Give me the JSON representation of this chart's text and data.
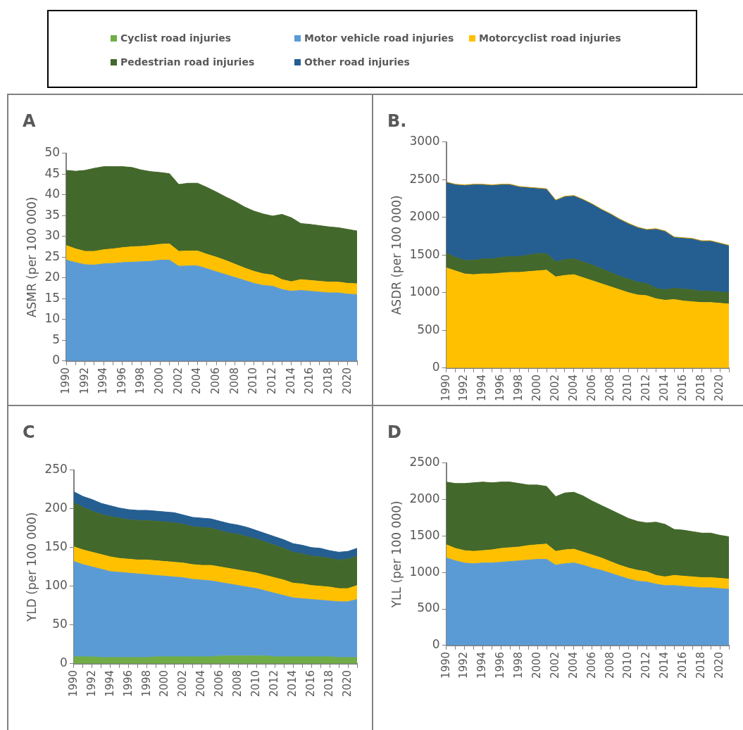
{
  "chart_data": [
    {
      "type": "area",
      "title": "A",
      "ylabel": "ASMR (per 100 000)",
      "stacked": true,
      "ylim": [
        0,
        50
      ],
      "yticks": [
        0,
        5,
        10,
        15,
        20,
        25,
        30,
        35,
        40,
        45,
        50
      ],
      "categories": [
        "1990",
        null,
        "1992",
        null,
        "1994",
        null,
        "1996",
        null,
        "1998",
        null,
        "2000",
        null,
        "2002",
        null,
        "2004",
        null,
        "2006",
        null,
        "2008",
        null,
        "2010",
        null,
        "2012",
        null,
        "2014",
        null,
        "2016",
        null,
        "2018",
        null,
        "2020",
        null
      ],
      "series": [
        {
          "color": "#5b9bd5",
          "values": [
            24.3,
            23.7,
            23.2,
            23.1,
            23.4,
            23.5,
            23.7,
            23.8,
            23.9,
            24.0,
            24.3,
            24.3,
            22.8,
            22.9,
            22.9,
            22.2,
            21.5,
            20.8,
            20.1,
            19.4,
            18.7,
            18.2,
            18.0,
            17.2,
            16.8,
            17.0,
            16.8,
            16.6,
            16.4,
            16.4,
            16.1,
            16.0
          ]
        },
        {
          "color": "#ffc000",
          "values": [
            3.5,
            3.3,
            3.2,
            3.3,
            3.4,
            3.5,
            3.6,
            3.7,
            3.7,
            3.8,
            3.8,
            3.9,
            3.6,
            3.6,
            3.6,
            3.5,
            3.5,
            3.4,
            3.2,
            3.0,
            2.9,
            2.8,
            2.7,
            2.4,
            2.3,
            2.6,
            2.6,
            2.6,
            2.6,
            2.6,
            2.6,
            2.6
          ]
        },
        {
          "color": "#43682b",
          "values": [
            18.1,
            18.7,
            19.5,
            20.0,
            20.0,
            19.8,
            19.5,
            19.1,
            18.4,
            17.8,
            17.3,
            16.9,
            16.1,
            16.3,
            16.3,
            16.1,
            15.7,
            15.3,
            15.1,
            14.7,
            14.5,
            14.4,
            14.2,
            15.7,
            15.4,
            13.5,
            13.5,
            13.4,
            13.3,
            13.1,
            13.0,
            12.7
          ]
        }
      ]
    },
    {
      "type": "area",
      "title": "B.",
      "ylabel": "ASDR (per 100 000)",
      "stacked": true,
      "ylim": [
        0,
        3000
      ],
      "yticks": [
        0,
        500,
        1000,
        1500,
        2000,
        2500,
        3000
      ],
      "categories": [
        "1990",
        null,
        "1992",
        null,
        "1994",
        null,
        "1996",
        null,
        "1998",
        null,
        "2000",
        null,
        "2002",
        null,
        "2004",
        null,
        "2006",
        null,
        "2008",
        null,
        "2010",
        null,
        "2012",
        null,
        "2014",
        null,
        "2016",
        null,
        "2018",
        null,
        "2020",
        null
      ],
      "series": [
        {
          "color": "#ffc000",
          "values": [
            1330,
            1290,
            1250,
            1240,
            1250,
            1250,
            1260,
            1270,
            1270,
            1280,
            1290,
            1300,
            1210,
            1230,
            1240,
            1200,
            1160,
            1120,
            1080,
            1040,
            1000,
            970,
            960,
            920,
            900,
            910,
            890,
            880,
            870,
            870,
            860,
            850
          ]
        },
        {
          "color": "#43682b",
          "values": [
            200,
            180,
            180,
            190,
            200,
            200,
            210,
            210,
            210,
            220,
            230,
            220,
            200,
            210,
            210,
            210,
            210,
            200,
            190,
            180,
            180,
            170,
            160,
            140,
            140,
            150,
            160,
            160,
            150,
            150,
            150,
            150
          ]
        },
        {
          "color": "#255e91",
          "values": [
            930,
            960,
            990,
            1000,
            980,
            970,
            960,
            950,
            920,
            890,
            860,
            850,
            810,
            830,
            830,
            820,
            800,
            780,
            770,
            750,
            730,
            720,
            710,
            780,
            770,
            670,
            670,
            670,
            660,
            660,
            640,
            620
          ]
        },
        {
          "color": "#bf9000",
          "values": [
            10,
            10,
            10,
            10,
            10,
            10,
            10,
            10,
            10,
            10,
            10,
            10,
            10,
            10,
            10,
            10,
            10,
            10,
            10,
            10,
            10,
            10,
            10,
            10,
            10,
            10,
            10,
            10,
            10,
            10,
            10,
            10
          ]
        }
      ]
    },
    {
      "type": "area",
      "title": "C",
      "ylabel": "YLD (per 100 000)",
      "stacked": true,
      "legend": "top",
      "ylim": [
        0,
        250
      ],
      "yticks": [
        0,
        50,
        100,
        150,
        200,
        250
      ],
      "categories": [
        "1990",
        null,
        "1992",
        null,
        "1994",
        null,
        "1996",
        null,
        "1998",
        null,
        "2000",
        null,
        "2002",
        null,
        "2004",
        null,
        "2006",
        null,
        "2008",
        null,
        "2010",
        null,
        "2012",
        null,
        "2014",
        null,
        "2016",
        null,
        "2018",
        null,
        "2020",
        null
      ],
      "series": [
        {
          "name": "Cyclist road injuries",
          "color": "#70ad47",
          "values": [
            9,
            9,
            9,
            8,
            8,
            8,
            8,
            8,
            8,
            9,
            9,
            9,
            9,
            9,
            9,
            9,
            10,
            10,
            10,
            10,
            10,
            10,
            9,
            9,
            9,
            9,
            9,
            9,
            9,
            8,
            8,
            8
          ]
        },
        {
          "name": "Motor vehicle road injuries",
          "color": "#5b9bd5",
          "values": [
            123,
            119,
            116,
            114,
            111,
            110,
            109,
            108,
            107,
            105,
            104,
            103,
            102,
            100,
            99,
            98,
            95,
            93,
            91,
            89,
            87,
            84,
            82,
            79,
            76,
            75,
            74,
            73,
            72,
            72,
            72,
            75
          ]
        },
        {
          "name": "Motorcyclist road injuries",
          "color": "#ffc000",
          "values": [
            19,
            19,
            19,
            19,
            19,
            18,
            18,
            18,
            19,
            19,
            19,
            19,
            19,
            19,
            19,
            20,
            20,
            20,
            20,
            20,
            20,
            20,
            20,
            20,
            19,
            19,
            18,
            18,
            18,
            17,
            17,
            18
          ]
        },
        {
          "name": "Pedestrian road injuries",
          "color": "#43682b",
          "values": [
            57,
            55,
            53,
            52,
            52,
            52,
            51,
            51,
            51,
            51,
            51,
            51,
            50,
            49,
            49,
            48,
            47,
            46,
            46,
            45,
            44,
            43,
            42,
            41,
            40,
            39,
            38,
            38,
            37,
            37,
            38,
            38
          ]
        },
        {
          "name": "Other road injuries",
          "color": "#255e91",
          "values": [
            14,
            14,
            15,
            14,
            14,
            13,
            13,
            13,
            13,
            13,
            13,
            13,
            12,
            12,
            12,
            12,
            12,
            12,
            12,
            12,
            11,
            11,
            11,
            11,
            11,
            11,
            11,
            11,
            10,
            10,
            10,
            10
          ]
        }
      ]
    },
    {
      "type": "area",
      "title": "D",
      "ylabel": "YLL (per 100 000)",
      "stacked": true,
      "ylim": [
        0,
        2500
      ],
      "yticks": [
        0,
        500,
        1000,
        1500,
        2000,
        2500
      ],
      "categories": [
        "1990",
        null,
        "1992",
        null,
        "1994",
        null,
        "1996",
        null,
        "1998",
        null,
        "2000",
        null,
        "2002",
        null,
        "2004",
        null,
        "2006",
        null,
        "2008",
        null,
        "2010",
        null,
        "2012",
        null,
        "2014",
        null,
        "2016",
        null,
        "2018",
        null,
        "2020",
        null
      ],
      "series": [
        {
          "color": "#5b9bd5",
          "values": [
            1200,
            1160,
            1130,
            1120,
            1130,
            1130,
            1140,
            1150,
            1160,
            1170,
            1180,
            1180,
            1100,
            1120,
            1130,
            1100,
            1060,
            1030,
            990,
            950,
            910,
            880,
            870,
            840,
            820,
            820,
            810,
            800,
            790,
            790,
            780,
            770
          ]
        },
        {
          "color": "#ffc000",
          "values": [
            180,
            170,
            170,
            170,
            170,
            180,
            190,
            190,
            190,
            200,
            200,
            210,
            190,
            190,
            190,
            180,
            180,
            170,
            160,
            150,
            150,
            150,
            140,
            120,
            120,
            140,
            140,
            140,
            140,
            140,
            140,
            140
          ]
        },
        {
          "color": "#43682b",
          "values": [
            860,
            890,
            920,
            940,
            940,
            920,
            910,
            900,
            870,
            830,
            820,
            790,
            750,
            780,
            780,
            770,
            740,
            720,
            710,
            700,
            680,
            670,
            670,
            730,
            720,
            630,
            630,
            620,
            610,
            610,
            590,
            580
          ]
        }
      ]
    }
  ]
}
